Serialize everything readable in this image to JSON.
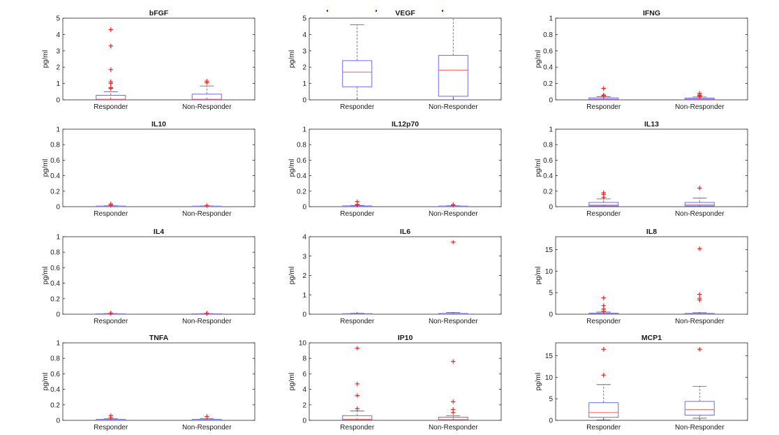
{
  "style": {
    "box_color": "#6b6bf0",
    "median_color": "#ff5a5a",
    "outlier_color": "#ff2020",
    "whisker_color": "#555555",
    "axis_color": "#262626",
    "top_mark_color": "#2e3ff5"
  },
  "chart_data": [
    {
      "type": "box",
      "title": "bFGF",
      "ylabel": "pg/ml",
      "categories": [
        "Responder",
        "Non-Responder"
      ],
      "ylim": [
        0,
        5
      ],
      "yticks": [
        0,
        1,
        2,
        3,
        4,
        5
      ],
      "yticklabels": [
        "0",
        "1",
        "2",
        "3",
        "4",
        "5"
      ],
      "boxes": [
        {
          "category": "Responder",
          "whisker_low": 0,
          "q1": 0.02,
          "median": 0.04,
          "q3": 0.28,
          "whisker_high": 0.5,
          "outliers": [
            0.7,
            0.75,
            1.0,
            1.1,
            1.85,
            3.3,
            4.3
          ]
        },
        {
          "category": "Non-Responder",
          "whisker_low": 0,
          "q1": 0.02,
          "median": 0.04,
          "q3": 0.35,
          "whisker_high": 0.85,
          "outliers": [
            1.05,
            1.15
          ]
        }
      ]
    },
    {
      "type": "box",
      "title": "VEGF",
      "ylabel": "pg/ml",
      "categories": [
        "Responder",
        "Non-Responder"
      ],
      "ylim": [
        0,
        5
      ],
      "yticks": [
        0,
        1,
        2,
        3,
        4,
        5
      ],
      "yticklabels": [
        "0",
        "1",
        "2",
        "3",
        "4",
        "5"
      ],
      "boxes": [
        {
          "category": "Responder",
          "whisker_low": 0,
          "q1": 0.8,
          "median": 1.7,
          "q3": 2.4,
          "whisker_high": 4.6,
          "outliers": []
        },
        {
          "category": "Non-Responder",
          "whisker_low": 0,
          "q1": 0.22,
          "median": 1.82,
          "q3": 2.72,
          "whisker_high": 5.0,
          "outliers": []
        }
      ]
    },
    {
      "type": "box",
      "title": "IFNG",
      "ylabel": "pg/ml",
      "categories": [
        "Responder",
        "Non-Responder"
      ],
      "ylim": [
        0,
        1
      ],
      "yticks": [
        0,
        0.2,
        0.4,
        0.6,
        0.8,
        1
      ],
      "yticklabels": [
        "0",
        "0.2",
        "0.4",
        "0.6",
        "0.8",
        "1"
      ],
      "boxes": [
        {
          "category": "Responder",
          "whisker_low": 0,
          "q1": 0.005,
          "median": 0.01,
          "q3": 0.025,
          "whisker_high": 0.04,
          "outliers": [
            0.05,
            0.06,
            0.14
          ]
        },
        {
          "category": "Non-Responder",
          "whisker_low": 0,
          "q1": 0.005,
          "median": 0.01,
          "q3": 0.022,
          "whisker_high": 0.035,
          "outliers": [
            0.04,
            0.05,
            0.06,
            0.08
          ]
        }
      ]
    },
    {
      "type": "box",
      "title": "IL10",
      "ylabel": "pg/ml",
      "categories": [
        "Responder",
        "Non-Responder"
      ],
      "ylim": [
        0,
        1
      ],
      "yticks": [
        0,
        0.2,
        0.4,
        0.6,
        0.8,
        1
      ],
      "yticklabels": [
        "0",
        "0.2",
        "0.4",
        "0.6",
        "0.8",
        "1"
      ],
      "boxes": [
        {
          "category": "Responder",
          "whisker_low": 0,
          "q1": 0.002,
          "median": 0.004,
          "q3": 0.008,
          "whisker_high": 0.012,
          "outliers": [
            0.02,
            0.035
          ]
        },
        {
          "category": "Non-Responder",
          "whisker_low": 0,
          "q1": 0.002,
          "median": 0.004,
          "q3": 0.007,
          "whisker_high": 0.01,
          "outliers": [
            0.015
          ]
        }
      ]
    },
    {
      "type": "box",
      "title": "IL12p70",
      "ylabel": "pg/ml",
      "categories": [
        "Responder",
        "Non-Responder"
      ],
      "ylim": [
        0,
        1
      ],
      "yticks": [
        0,
        0.2,
        0.4,
        0.6,
        0.8,
        1
      ],
      "yticklabels": [
        "0",
        "0.2",
        "0.4",
        "0.6",
        "0.8",
        "1"
      ],
      "boxes": [
        {
          "category": "Responder",
          "whisker_low": 0,
          "q1": 0.002,
          "median": 0.005,
          "q3": 0.01,
          "whisker_high": 0.015,
          "outliers": [
            0.02,
            0.03,
            0.065
          ]
        },
        {
          "category": "Non-Responder",
          "whisker_low": 0,
          "q1": 0.002,
          "median": 0.004,
          "q3": 0.008,
          "whisker_high": 0.012,
          "outliers": [
            0.02,
            0.025
          ]
        }
      ]
    },
    {
      "type": "box",
      "title": "IL13",
      "ylabel": "pg/ml",
      "categories": [
        "Responder",
        "Non-Responder"
      ],
      "ylim": [
        0,
        1
      ],
      "yticks": [
        0,
        0.2,
        0.4,
        0.6,
        0.8,
        1
      ],
      "yticklabels": [
        "0",
        "0.2",
        "0.4",
        "0.6",
        "0.8",
        "1"
      ],
      "boxes": [
        {
          "category": "Responder",
          "whisker_low": 0,
          "q1": 0.01,
          "median": 0.02,
          "q3": 0.055,
          "whisker_high": 0.1,
          "outliers": [
            0.12,
            0.16,
            0.18
          ]
        },
        {
          "category": "Non-Responder",
          "whisker_low": 0,
          "q1": 0.01,
          "median": 0.025,
          "q3": 0.055,
          "whisker_high": 0.11,
          "outliers": [
            0.24
          ]
        }
      ]
    },
    {
      "type": "box",
      "title": "IL4",
      "ylabel": "pg/ml",
      "categories": [
        "Responder",
        "Non-Responder"
      ],
      "ylim": [
        0,
        1
      ],
      "yticks": [
        0,
        0.2,
        0.4,
        0.6,
        0.8,
        1
      ],
      "yticklabels": [
        "0",
        "0.2",
        "0.4",
        "0.6",
        "0.8",
        "1"
      ],
      "boxes": [
        {
          "category": "Responder",
          "whisker_low": 0,
          "q1": 0.001,
          "median": 0.003,
          "q3": 0.006,
          "whisker_high": 0.009,
          "outliers": [
            0.012,
            0.015
          ]
        },
        {
          "category": "Non-Responder",
          "whisker_low": 0,
          "q1": 0.001,
          "median": 0.003,
          "q3": 0.006,
          "whisker_high": 0.008,
          "outliers": [
            0.01,
            0.013
          ]
        }
      ]
    },
    {
      "type": "box",
      "title": "IL6",
      "ylabel": "pg/ml",
      "categories": [
        "Responder",
        "Non-Responder"
      ],
      "ylim": [
        0,
        4
      ],
      "yticks": [
        0,
        1,
        2,
        3,
        4
      ],
      "yticklabels": [
        "0",
        "1",
        "2",
        "3",
        "4"
      ],
      "boxes": [
        {
          "category": "Responder",
          "whisker_low": 0,
          "q1": 0.005,
          "median": 0.015,
          "q3": 0.03,
          "whisker_high": 0.05,
          "outliers": []
        },
        {
          "category": "Non-Responder",
          "whisker_low": 0,
          "q1": 0.005,
          "median": 0.02,
          "q3": 0.04,
          "whisker_high": 0.09,
          "outliers": [
            3.72
          ]
        }
      ]
    },
    {
      "type": "box",
      "title": "IL8",
      "ylabel": "pg/ml",
      "categories": [
        "Responder",
        "Non-Responder"
      ],
      "ylim": [
        0,
        18
      ],
      "yticks": [
        0,
        5,
        10,
        15
      ],
      "yticklabels": [
        "0",
        "5",
        "10",
        "15"
      ],
      "boxes": [
        {
          "category": "Responder",
          "whisker_low": 0,
          "q1": 0.05,
          "median": 0.1,
          "q3": 0.25,
          "whisker_high": 0.5,
          "outliers": [
            0.7,
            1.2,
            2.0,
            3.8
          ]
        },
        {
          "category": "Non-Responder",
          "whisker_low": 0,
          "q1": 0.05,
          "median": 0.1,
          "q3": 0.2,
          "whisker_high": 0.35,
          "outliers": [
            3.3,
            3.7,
            4.6,
            15.2
          ]
        }
      ]
    },
    {
      "type": "box",
      "title": "TNFA",
      "ylabel": "pg/ml",
      "categories": [
        "Responder",
        "Non-Responder"
      ],
      "ylim": [
        0,
        1
      ],
      "yticks": [
        0,
        0.2,
        0.4,
        0.6,
        0.8,
        1
      ],
      "yticklabels": [
        "0",
        "0.2",
        "0.4",
        "0.6",
        "0.8",
        "1"
      ],
      "boxes": [
        {
          "category": "Responder",
          "whisker_low": 0,
          "q1": 0.002,
          "median": 0.005,
          "q3": 0.012,
          "whisker_high": 0.02,
          "outliers": [
            0.035,
            0.06
          ]
        },
        {
          "category": "Non-Responder",
          "whisker_low": 0,
          "q1": 0.002,
          "median": 0.005,
          "q3": 0.012,
          "whisker_high": 0.025,
          "outliers": [
            0.05
          ]
        }
      ]
    },
    {
      "type": "box",
      "title": "IP10",
      "ylabel": "pg/ml",
      "categories": [
        "Responder",
        "Non-Responder"
      ],
      "ylim": [
        0,
        10
      ],
      "yticks": [
        0,
        2,
        4,
        6,
        8,
        10
      ],
      "yticklabels": [
        "0",
        "2",
        "4",
        "6",
        "8",
        "10"
      ],
      "boxes": [
        {
          "category": "Responder",
          "whisker_low": 0,
          "q1": 0.05,
          "median": 0.15,
          "q3": 0.6,
          "whisker_high": 1.2,
          "outliers": [
            1.5,
            3.2,
            4.7,
            9.3
          ]
        },
        {
          "category": "Non-Responder",
          "whisker_low": 0,
          "q1": 0.05,
          "median": 0.1,
          "q3": 0.4,
          "whisker_high": 0.6,
          "outliers": [
            1.0,
            1.4,
            2.4,
            7.6
          ]
        }
      ]
    },
    {
      "type": "box",
      "title": "MCP1",
      "ylabel": "pg/ml",
      "categories": [
        "Responder",
        "Non-Responder"
      ],
      "ylim": [
        0,
        18
      ],
      "yticks": [
        0,
        5,
        10,
        15
      ],
      "yticklabels": [
        "0",
        "5",
        "10",
        "15"
      ],
      "boxes": [
        {
          "category": "Responder",
          "whisker_low": 0.1,
          "q1": 0.7,
          "median": 1.8,
          "q3": 4.1,
          "whisker_high": 8.3,
          "outliers": [
            10.5,
            16.5
          ]
        },
        {
          "category": "Non-Responder",
          "whisker_low": 0.5,
          "q1": 1.2,
          "median": 2.5,
          "q3": 4.4,
          "whisker_high": 7.9,
          "outliers": [
            16.5
          ]
        }
      ]
    }
  ]
}
